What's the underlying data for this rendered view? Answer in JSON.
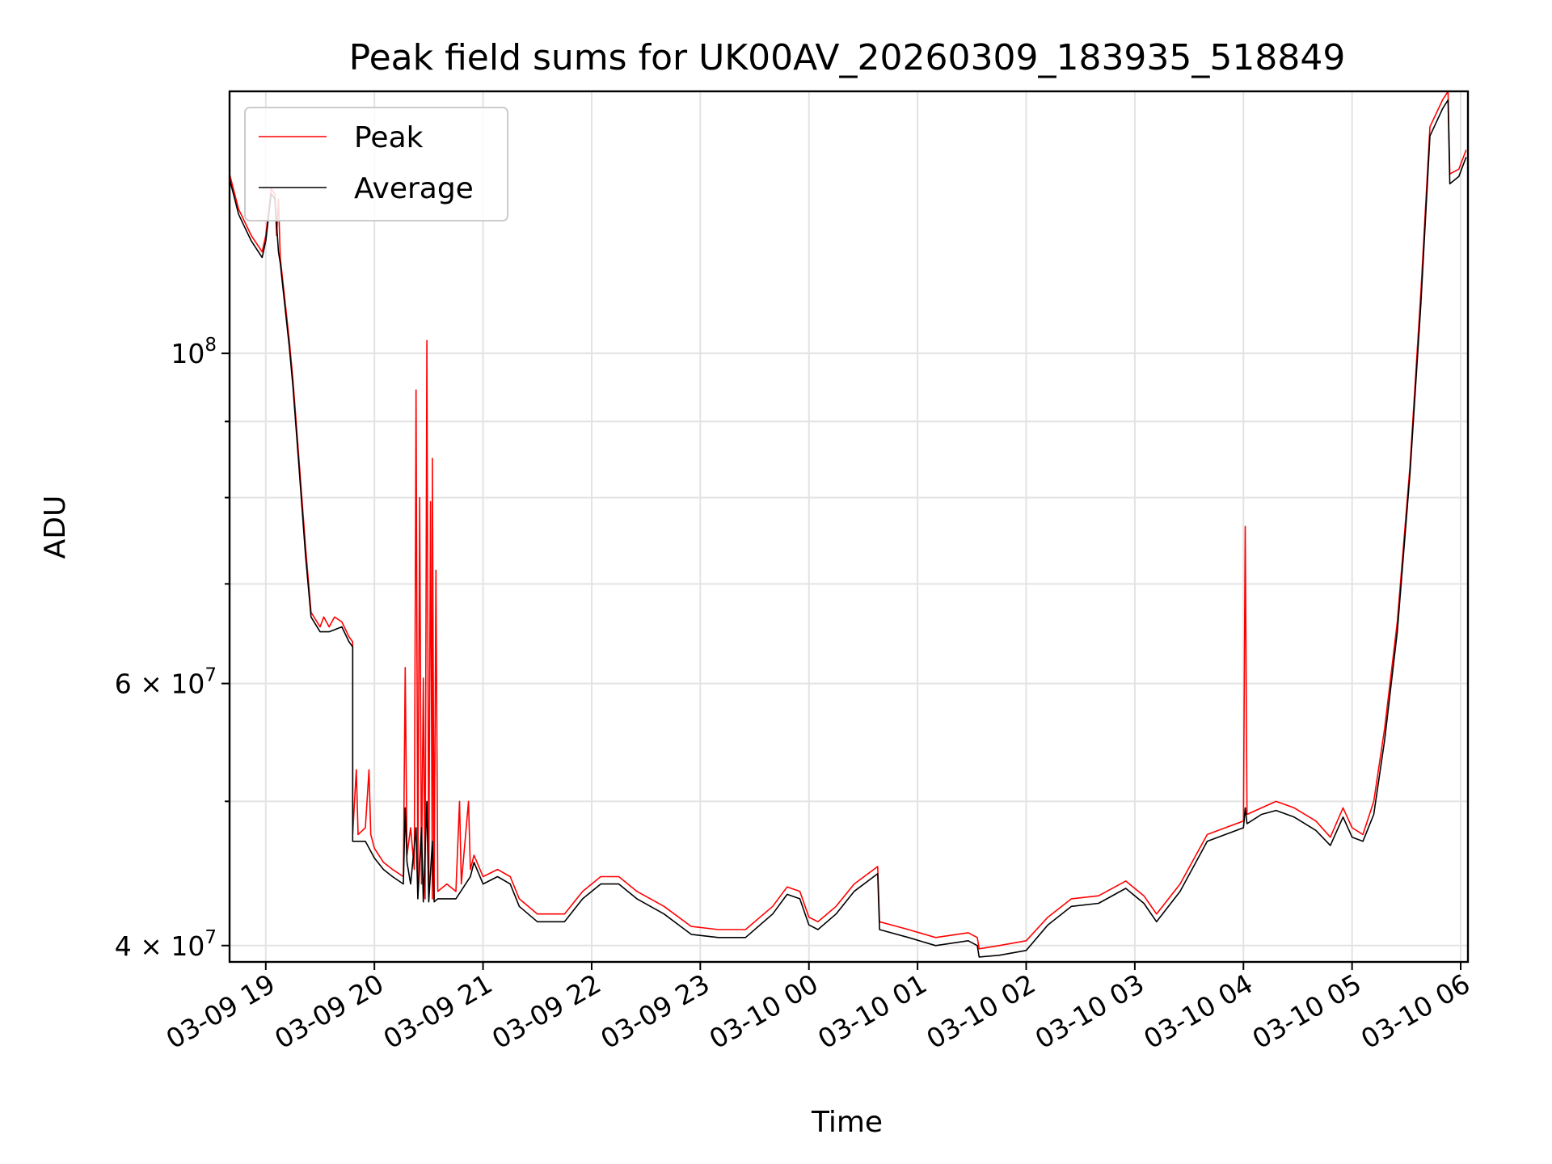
{
  "chart_data": {
    "type": "line",
    "title": "Peak field sums for UK00AV_20260309_183935_518849",
    "xlabel": "Time",
    "ylabel": "ADU",
    "y_scale": "log",
    "grid": true,
    "legend_position": "top-left",
    "xlim": [
      "2026-03-09 18:40",
      "2026-03-10 06:04"
    ],
    "ylim": [
      39000000,
      150000000
    ],
    "x_ticks": [
      "03-09 19",
      "03-09 20",
      "03-09 21",
      "03-09 22",
      "03-09 23",
      "03-10 00",
      "03-10 01",
      "03-10 02",
      "03-10 03",
      "03-10 04",
      "03-10 05",
      "03-10 06"
    ],
    "x_tick_values": [
      "2026-03-09 19:00",
      "2026-03-09 20:00",
      "2026-03-09 21:00",
      "2026-03-09 22:00",
      "2026-03-09 23:00",
      "2026-03-10 00:00",
      "2026-03-10 01:00",
      "2026-03-10 02:00",
      "2026-03-10 03:00",
      "2026-03-10 04:00",
      "2026-03-10 05:00",
      "2026-03-10 06:00"
    ],
    "y_ticks": [
      {
        "value": 40000000,
        "mantissa": "4",
        "exponent": "7"
      },
      {
        "value": 60000000,
        "mantissa": "6",
        "exponent": "7"
      },
      {
        "value": 100000000,
        "mantissa": "",
        "exponent": "8"
      }
    ],
    "series": [
      {
        "name": "Peak",
        "color": "#ff0000",
        "points": [
          [
            "2026-03-09 18:40",
            132000000
          ],
          [
            "2026-03-09 18:45",
            125000000
          ],
          [
            "2026-03-09 18:52",
            120000000
          ],
          [
            "2026-03-09 18:58",
            117000000
          ],
          [
            "2026-03-09 19:00",
            120000000
          ],
          [
            "2026-03-09 19:03",
            129000000
          ],
          [
            "2026-03-09 19:05",
            128000000
          ],
          [
            "2026-03-09 19:06",
            120000000
          ],
          [
            "2026-03-09 19:07",
            127000000
          ],
          [
            "2026-03-09 19:08",
            116000000
          ],
          [
            "2026-03-09 19:13",
            102000000
          ],
          [
            "2026-03-09 19:15",
            96000000
          ],
          [
            "2026-03-09 19:18",
            86000000
          ],
          [
            "2026-03-09 19:22",
            74000000
          ],
          [
            "2026-03-09 19:25",
            67000000
          ],
          [
            "2026-03-09 19:30",
            65500000
          ],
          [
            "2026-03-09 19:32",
            66500000
          ],
          [
            "2026-03-09 19:35",
            65500000
          ],
          [
            "2026-03-09 19:38",
            66500000
          ],
          [
            "2026-03-09 19:42",
            66000000
          ],
          [
            "2026-03-09 19:46",
            64500000
          ],
          [
            "2026-03-09 19:48",
            64000000
          ],
          [
            "2026-03-09 19:48",
            47500000
          ],
          [
            "2026-03-09 19:50",
            52500000
          ],
          [
            "2026-03-09 19:51",
            47500000
          ],
          [
            "2026-03-09 19:55",
            48000000
          ],
          [
            "2026-03-09 19:57",
            52500000
          ],
          [
            "2026-03-09 19:58",
            47500000
          ],
          [
            "2026-03-09 20:00",
            46500000
          ],
          [
            "2026-03-09 20:05",
            45500000
          ],
          [
            "2026-03-09 20:10",
            45000000
          ],
          [
            "2026-03-09 20:16",
            44500000
          ],
          [
            "2026-03-09 20:17",
            61500000
          ],
          [
            "2026-03-09 20:18",
            46000000
          ],
          [
            "2026-03-09 20:20",
            48000000
          ],
          [
            "2026-03-09 20:22",
            45000000
          ],
          [
            "2026-03-09 20:23",
            94500000
          ],
          [
            "2026-03-09 20:24",
            44000000
          ],
          [
            "2026-03-09 20:25",
            80000000
          ],
          [
            "2026-03-09 20:26",
            44000000
          ],
          [
            "2026-03-09 20:27",
            60500000
          ],
          [
            "2026-03-09 20:28",
            43000000
          ],
          [
            "2026-03-09 20:29",
            102000000
          ],
          [
            "2026-03-09 20:30",
            43000000
          ],
          [
            "2026-03-09 20:31",
            79500000
          ],
          [
            "2026-03-09 20:32",
            43000000
          ],
          [
            "2026-03-09 20:32",
            85000000
          ],
          [
            "2026-03-09 20:33",
            43000000
          ],
          [
            "2026-03-09 20:34",
            71500000
          ],
          [
            "2026-03-09 20:35",
            43500000
          ],
          [
            "2026-03-09 20:40",
            44000000
          ],
          [
            "2026-03-09 20:45",
            43500000
          ],
          [
            "2026-03-09 20:47",
            50000000
          ],
          [
            "2026-03-09 20:48",
            44000000
          ],
          [
            "2026-03-09 20:52",
            50000000
          ],
          [
            "2026-03-09 20:53",
            45000000
          ],
          [
            "2026-03-09 20:55",
            46000000
          ],
          [
            "2026-03-09 21:00",
            44500000
          ],
          [
            "2026-03-09 21:08",
            45000000
          ],
          [
            "2026-03-09 21:15",
            44500000
          ],
          [
            "2026-03-09 21:20",
            43000000
          ],
          [
            "2026-03-09 21:30",
            42000000
          ],
          [
            "2026-03-09 21:45",
            42000000
          ],
          [
            "2026-03-09 21:55",
            43500000
          ],
          [
            "2026-03-09 22:05",
            44500000
          ],
          [
            "2026-03-09 22:15",
            44500000
          ],
          [
            "2026-03-09 22:25",
            43500000
          ],
          [
            "2026-03-09 22:40",
            42500000
          ],
          [
            "2026-03-09 22:55",
            41200000
          ],
          [
            "2026-03-09 23:10",
            41000000
          ],
          [
            "2026-03-09 23:25",
            41000000
          ],
          [
            "2026-03-09 23:40",
            42500000
          ],
          [
            "2026-03-09 23:48",
            43800000
          ],
          [
            "2026-03-09 23:55",
            43500000
          ],
          [
            "2026-03-10 00:00",
            41800000
          ],
          [
            "2026-03-10 00:05",
            41500000
          ],
          [
            "2026-03-10 00:15",
            42500000
          ],
          [
            "2026-03-10 00:25",
            44000000
          ],
          [
            "2026-03-10 00:38",
            45200000
          ],
          [
            "2026-03-10 00:39",
            41500000
          ],
          [
            "2026-03-10 00:55",
            41000000
          ],
          [
            "2026-03-10 01:10",
            40500000
          ],
          [
            "2026-03-10 01:28",
            40800000
          ],
          [
            "2026-03-10 01:33",
            40500000
          ],
          [
            "2026-03-10 01:34",
            39800000
          ],
          [
            "2026-03-10 01:45",
            40000000
          ],
          [
            "2026-03-10 02:00",
            40300000
          ],
          [
            "2026-03-10 02:12",
            41800000
          ],
          [
            "2026-03-10 02:25",
            43000000
          ],
          [
            "2026-03-10 02:40",
            43200000
          ],
          [
            "2026-03-10 02:55",
            44200000
          ],
          [
            "2026-03-10 03:05",
            43200000
          ],
          [
            "2026-03-10 03:12",
            42000000
          ],
          [
            "2026-03-10 03:25",
            44000000
          ],
          [
            "2026-03-10 03:40",
            47500000
          ],
          [
            "2026-03-10 03:50",
            48000000
          ],
          [
            "2026-03-10 04:00",
            48500000
          ],
          [
            "2026-03-10 04:01",
            76500000
          ],
          [
            "2026-03-10 04:02",
            49000000
          ],
          [
            "2026-03-10 04:10",
            49500000
          ],
          [
            "2026-03-10 04:18",
            50000000
          ],
          [
            "2026-03-10 04:28",
            49500000
          ],
          [
            "2026-03-10 04:40",
            48500000
          ],
          [
            "2026-03-10 04:48",
            47300000
          ],
          [
            "2026-03-10 04:55",
            49500000
          ],
          [
            "2026-03-10 05:00",
            48000000
          ],
          [
            "2026-03-10 05:06",
            47500000
          ],
          [
            "2026-03-10 05:12",
            50000000
          ],
          [
            "2026-03-10 05:18",
            56000000
          ],
          [
            "2026-03-10 05:25",
            66000000
          ],
          [
            "2026-03-10 05:32",
            84000000
          ],
          [
            "2026-03-10 05:38",
            110000000
          ],
          [
            "2026-03-10 05:43",
            142000000
          ],
          [
            "2026-03-10 05:50",
            148000000
          ],
          [
            "2026-03-10 05:53",
            150000000
          ],
          [
            "2026-03-10 05:54",
            132000000
          ],
          [
            "2026-03-10 05:59",
            133000000
          ],
          [
            "2026-03-10 06:03",
            137000000
          ]
        ]
      },
      {
        "name": "Average",
        "color": "#000000",
        "points": [
          [
            "2026-03-09 18:40",
            131000000
          ],
          [
            "2026-03-09 18:45",
            124000000
          ],
          [
            "2026-03-09 18:52",
            119000000
          ],
          [
            "2026-03-09 18:58",
            116000000
          ],
          [
            "2026-03-09 19:00",
            119000000
          ],
          [
            "2026-03-09 19:03",
            128000000
          ],
          [
            "2026-03-09 19:05",
            127000000
          ],
          [
            "2026-03-09 19:07",
            117000000
          ],
          [
            "2026-03-09 19:08",
            115000000
          ],
          [
            "2026-03-09 19:13",
            101000000
          ],
          [
            "2026-03-09 19:15",
            95000000
          ],
          [
            "2026-03-09 19:18",
            85000000
          ],
          [
            "2026-03-09 19:22",
            73000000
          ],
          [
            "2026-03-09 19:25",
            66500000
          ],
          [
            "2026-03-09 19:30",
            65000000
          ],
          [
            "2026-03-09 19:35",
            65000000
          ],
          [
            "2026-03-09 19:42",
            65500000
          ],
          [
            "2026-03-09 19:46",
            64000000
          ],
          [
            "2026-03-09 19:48",
            63500000
          ],
          [
            "2026-03-09 19:48",
            47000000
          ],
          [
            "2026-03-09 19:55",
            47000000
          ],
          [
            "2026-03-09 20:00",
            45800000
          ],
          [
            "2026-03-09 20:05",
            45000000
          ],
          [
            "2026-03-09 20:10",
            44500000
          ],
          [
            "2026-03-09 20:16",
            44000000
          ],
          [
            "2026-03-09 20:17",
            49500000
          ],
          [
            "2026-03-09 20:18",
            45500000
          ],
          [
            "2026-03-09 20:20",
            44000000
          ],
          [
            "2026-03-09 20:23",
            48000000
          ],
          [
            "2026-03-09 20:24",
            43000000
          ],
          [
            "2026-03-09 20:26",
            48000000
          ],
          [
            "2026-03-09 20:27",
            42800000
          ],
          [
            "2026-03-09 20:29",
            50000000
          ],
          [
            "2026-03-09 20:30",
            42800000
          ],
          [
            "2026-03-09 20:32",
            47000000
          ],
          [
            "2026-03-09 20:33",
            42800000
          ],
          [
            "2026-03-09 20:35",
            43000000
          ],
          [
            "2026-03-09 20:45",
            43000000
          ],
          [
            "2026-03-09 20:53",
            44500000
          ],
          [
            "2026-03-09 20:55",
            45500000
          ],
          [
            "2026-03-09 21:00",
            44000000
          ],
          [
            "2026-03-09 21:08",
            44500000
          ],
          [
            "2026-03-09 21:15",
            44000000
          ],
          [
            "2026-03-09 21:20",
            42500000
          ],
          [
            "2026-03-09 21:30",
            41500000
          ],
          [
            "2026-03-09 21:45",
            41500000
          ],
          [
            "2026-03-09 21:55",
            43000000
          ],
          [
            "2026-03-09 22:05",
            44000000
          ],
          [
            "2026-03-09 22:15",
            44000000
          ],
          [
            "2026-03-09 22:25",
            43000000
          ],
          [
            "2026-03-09 22:40",
            42000000
          ],
          [
            "2026-03-09 22:55",
            40700000
          ],
          [
            "2026-03-09 23:10",
            40500000
          ],
          [
            "2026-03-09 23:25",
            40500000
          ],
          [
            "2026-03-09 23:40",
            42000000
          ],
          [
            "2026-03-09 23:48",
            43300000
          ],
          [
            "2026-03-09 23:55",
            43000000
          ],
          [
            "2026-03-10 00:00",
            41300000
          ],
          [
            "2026-03-10 00:05",
            41000000
          ],
          [
            "2026-03-10 00:15",
            42000000
          ],
          [
            "2026-03-10 00:25",
            43500000
          ],
          [
            "2026-03-10 00:38",
            44700000
          ],
          [
            "2026-03-10 00:39",
            41000000
          ],
          [
            "2026-03-10 00:55",
            40500000
          ],
          [
            "2026-03-10 01:10",
            40000000
          ],
          [
            "2026-03-10 01:28",
            40300000
          ],
          [
            "2026-03-10 01:33",
            40000000
          ],
          [
            "2026-03-10 01:34",
            39300000
          ],
          [
            "2026-03-10 01:45",
            39400000
          ],
          [
            "2026-03-10 02:00",
            39700000
          ],
          [
            "2026-03-10 02:12",
            41300000
          ],
          [
            "2026-03-10 02:25",
            42500000
          ],
          [
            "2026-03-10 02:40",
            42700000
          ],
          [
            "2026-03-10 02:55",
            43700000
          ],
          [
            "2026-03-10 03:05",
            42700000
          ],
          [
            "2026-03-10 03:12",
            41500000
          ],
          [
            "2026-03-10 03:25",
            43500000
          ],
          [
            "2026-03-10 03:40",
            47000000
          ],
          [
            "2026-03-10 03:50",
            47500000
          ],
          [
            "2026-03-10 04:00",
            48000000
          ],
          [
            "2026-03-10 04:01",
            49500000
          ],
          [
            "2026-03-10 04:02",
            48300000
          ],
          [
            "2026-03-10 04:10",
            49000000
          ],
          [
            "2026-03-10 04:18",
            49300000
          ],
          [
            "2026-03-10 04:28",
            48800000
          ],
          [
            "2026-03-10 04:40",
            47800000
          ],
          [
            "2026-03-10 04:48",
            46700000
          ],
          [
            "2026-03-10 04:55",
            48800000
          ],
          [
            "2026-03-10 05:00",
            47300000
          ],
          [
            "2026-03-10 05:06",
            47000000
          ],
          [
            "2026-03-10 05:12",
            49000000
          ],
          [
            "2026-03-10 05:18",
            55000000
          ],
          [
            "2026-03-10 05:25",
            65000000
          ],
          [
            "2026-03-10 05:32",
            83000000
          ],
          [
            "2026-03-10 05:38",
            108000000
          ],
          [
            "2026-03-10 05:43",
            140000000
          ],
          [
            "2026-03-10 05:50",
            146000000
          ],
          [
            "2026-03-10 05:53",
            148000000
          ],
          [
            "2026-03-10 05:54",
            130000000
          ],
          [
            "2026-03-10 05:59",
            131500000
          ],
          [
            "2026-03-10 06:03",
            135500000
          ]
        ]
      }
    ]
  }
}
